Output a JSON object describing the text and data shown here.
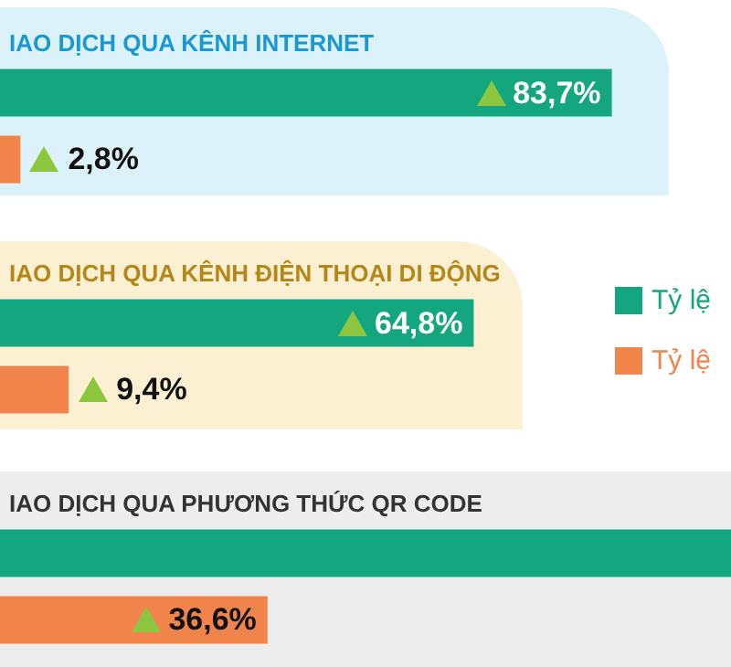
{
  "chart_data": [
    {
      "type": "bar",
      "orientation": "horizontal",
      "title": "IAO DỊCH QUA KÊNH INTERNET",
      "categories": [
        null
      ],
      "legend": false,
      "series": [
        {
          "color": "#13a67f",
          "values": [
            83.7
          ],
          "value_labels": [
            "83,7%"
          ]
        },
        {
          "color": "#f0844a",
          "values": [
            2.8
          ],
          "value_labels": [
            "2,8%"
          ]
        }
      ]
    },
    {
      "type": "bar",
      "orientation": "horizontal",
      "title": "IAO DỊCH QUA KÊNH ĐIỆN THOẠI DI ĐỘNG",
      "categories": [
        null
      ],
      "legend": "right",
      "series": [
        {
          "name": "Tỷ lệ",
          "color": "#13a67f",
          "values": [
            64.8
          ],
          "value_labels": [
            "64,8%"
          ]
        },
        {
          "name": "Tỷ lệ",
          "color": "#f0844a",
          "values": [
            9.4
          ],
          "value_labels": [
            "9,4%"
          ]
        }
      ]
    },
    {
      "type": "bar",
      "orientation": "horizontal",
      "title": "IAO DỊCH QUA PHƯƠNG THỨC QR CODE",
      "categories": [
        null
      ],
      "legend": false,
      "series": [
        {
          "color": "#13a67f",
          "values": [
            100
          ],
          "value_labels": [
            null
          ]
        },
        {
          "color": "#f0844a",
          "values": [
            36.6
          ],
          "value_labels": [
            "36,6%"
          ]
        }
      ]
    }
  ]
}
